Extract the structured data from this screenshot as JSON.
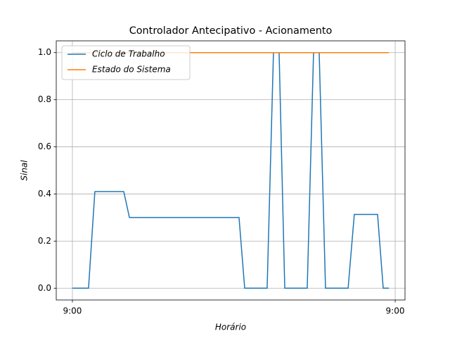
{
  "chart_data": {
    "type": "line",
    "title": "Controlador Antecipativo - Acionamento",
    "xlabel": "Horário",
    "ylabel": "Sinal",
    "x": [
      0,
      1.2,
      1.67,
      3.82,
      4.24,
      12.39,
      12.81,
      14.48,
      14.95,
      15.37,
      15.79,
      17.46,
      17.93,
      18.35,
      18.82,
      20.5,
      20.96,
      22.69,
      23.11,
      23.53
    ],
    "series": [
      {
        "name": "Ciclo de Trabalho",
        "color": "#1f77b4",
        "values": [
          0,
          0,
          0.41,
          0.41,
          0.3,
          0.3,
          0,
          0,
          1,
          1,
          0,
          0,
          1,
          1,
          0,
          0,
          0.313,
          0.313,
          0,
          0
        ]
      },
      {
        "name": "Estado do Sistema",
        "color": "#ff7f0e",
        "values": [
          1,
          1,
          1,
          1,
          1,
          1,
          1,
          1,
          1,
          1,
          1,
          1,
          1,
          1,
          1,
          1,
          1,
          1,
          1,
          1
        ]
      }
    ],
    "xlim": [
      -1.2,
      24.73
    ],
    "xticks": [
      {
        "value": 0,
        "label": "9:00"
      },
      {
        "value": 24,
        "label": "9:00"
      }
    ],
    "ylim": [
      -0.05,
      1.05
    ],
    "yticks": [
      {
        "value": 0,
        "label": "0.0"
      },
      {
        "value": 0.2,
        "label": "0.2"
      },
      {
        "value": 0.4,
        "label": "0.4"
      },
      {
        "value": 0.6,
        "label": "0.6"
      },
      {
        "value": 0.8,
        "label": "0.8"
      },
      {
        "value": 1,
        "label": "1.0"
      }
    ],
    "grid": true,
    "legend": "upper left"
  }
}
